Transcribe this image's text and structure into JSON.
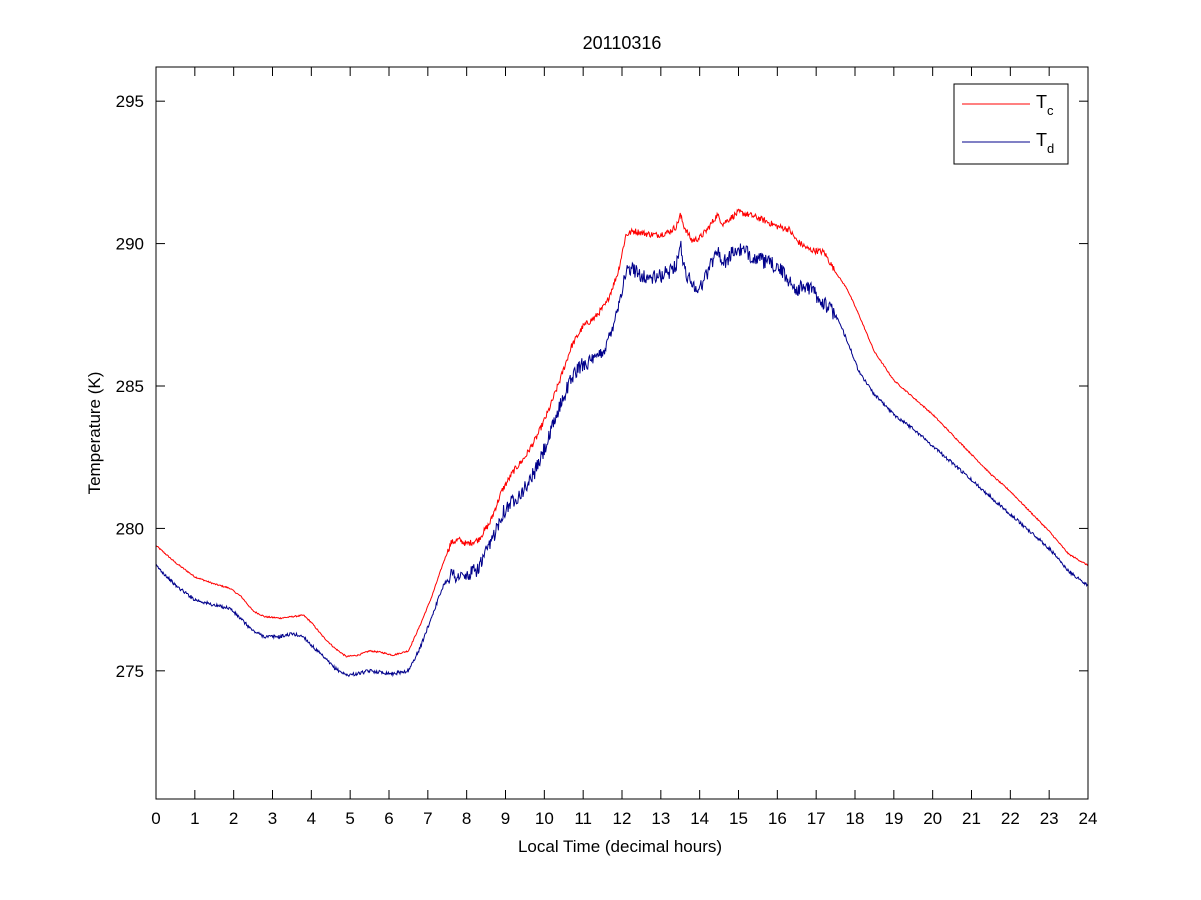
{
  "chart_data": {
    "type": "line",
    "title": "20110316",
    "xlabel": "Local Time (decimal hours)",
    "ylabel": "Temperature (K)",
    "xlim": [
      0,
      24
    ],
    "ylim": [
      270.5,
      296.2
    ],
    "xticks": [
      "0",
      "1",
      "2",
      "3",
      "4",
      "5",
      "6",
      "7",
      "8",
      "9",
      "10",
      "11",
      "12",
      "13",
      "14",
      "15",
      "16",
      "17",
      "18",
      "19",
      "20",
      "21",
      "22",
      "23",
      "24"
    ],
    "yticks": [
      "275",
      "280",
      "285",
      "290",
      "295"
    ],
    "grid": false,
    "legend_position": "top-right",
    "series": [
      {
        "name": "T",
        "subscript": "c",
        "color": "#ff0000",
        "x": [
          0,
          0.5,
          1,
          1.5,
          1.9,
          2.2,
          2.5,
          2.8,
          3.2,
          3.5,
          3.8,
          4.0,
          4.3,
          4.6,
          4.9,
          5.2,
          5.5,
          5.8,
          6.1,
          6.5,
          6.8,
          7.1,
          7.4,
          7.6,
          7.8,
          8.0,
          8.3,
          8.6,
          8.9,
          9.2,
          9.5,
          9.8,
          10.1,
          10.4,
          10.7,
          11.0,
          11.3,
          11.6,
          11.9,
          12.1,
          12.3,
          12.6,
          12.9,
          13.2,
          13.4,
          13.5,
          13.6,
          13.8,
          14.0,
          14.2,
          14.45,
          14.6,
          14.8,
          15.0,
          15.3,
          15.6,
          16.0,
          16.3,
          16.5,
          16.8,
          17.2,
          17.5,
          17.8,
          18.1,
          18.5,
          19.0,
          19.5,
          20.0,
          20.5,
          21.0,
          21.5,
          22.0,
          22.5,
          23.0,
          23.5,
          24.0
        ],
        "values": [
          279.4,
          278.8,
          278.3,
          278.05,
          277.9,
          277.6,
          277.1,
          276.9,
          276.85,
          276.9,
          276.95,
          276.7,
          276.2,
          275.8,
          275.5,
          275.55,
          275.7,
          275.65,
          275.55,
          275.7,
          276.6,
          277.6,
          278.8,
          279.5,
          279.6,
          279.45,
          279.6,
          280.2,
          281.3,
          282.0,
          282.5,
          283.2,
          284.1,
          285.2,
          286.4,
          287.1,
          287.4,
          287.9,
          289.0,
          290.3,
          290.45,
          290.35,
          290.3,
          290.4,
          290.6,
          291.0,
          290.6,
          290.1,
          290.2,
          290.5,
          291.0,
          290.7,
          290.9,
          291.1,
          291.0,
          290.85,
          290.6,
          290.5,
          290.1,
          289.8,
          289.7,
          289.0,
          288.4,
          287.5,
          286.2,
          285.2,
          284.6,
          284.0,
          283.3,
          282.6,
          281.9,
          281.3,
          280.6,
          279.9,
          279.1,
          278.7
        ]
      },
      {
        "name": "T",
        "subscript": "d",
        "color": "#00008b",
        "x": [
          0,
          0.5,
          1,
          1.5,
          1.9,
          2.2,
          2.5,
          2.8,
          3.2,
          3.5,
          3.8,
          4.0,
          4.3,
          4.6,
          4.9,
          5.2,
          5.5,
          5.8,
          6.1,
          6.5,
          6.8,
          7.1,
          7.4,
          7.6,
          7.8,
          8.0,
          8.3,
          8.6,
          8.9,
          9.2,
          9.5,
          9.8,
          10.1,
          10.4,
          10.7,
          11.0,
          11.3,
          11.6,
          11.9,
          12.1,
          12.3,
          12.6,
          12.9,
          13.2,
          13.4,
          13.5,
          13.6,
          13.8,
          14.0,
          14.2,
          14.45,
          14.6,
          14.8,
          15.0,
          15.3,
          15.6,
          16.0,
          16.3,
          16.5,
          16.8,
          17.2,
          17.5,
          17.8,
          18.1,
          18.5,
          19.0,
          19.5,
          20.0,
          20.5,
          21.0,
          21.5,
          22.0,
          22.5,
          23.0,
          23.5,
          24.0
        ],
        "values": [
          278.7,
          278.0,
          277.5,
          277.3,
          277.2,
          276.8,
          276.4,
          276.2,
          276.2,
          276.3,
          276.2,
          275.9,
          275.5,
          275.1,
          274.85,
          274.9,
          275.0,
          274.95,
          274.9,
          275.0,
          275.8,
          276.9,
          278.0,
          278.4,
          278.3,
          278.3,
          278.6,
          279.4,
          280.5,
          281.0,
          281.4,
          282.1,
          283.1,
          284.3,
          285.3,
          285.8,
          285.9,
          286.4,
          287.8,
          289.0,
          289.1,
          288.8,
          288.8,
          289.0,
          289.3,
          290.0,
          289.1,
          288.6,
          288.4,
          289.0,
          289.8,
          289.3,
          289.6,
          289.8,
          289.6,
          289.4,
          289.2,
          288.7,
          288.4,
          288.5,
          287.9,
          287.5,
          286.6,
          285.5,
          284.7,
          284.0,
          283.5,
          282.9,
          282.3,
          281.7,
          281.1,
          280.5,
          279.9,
          279.3,
          278.5,
          278.0
        ]
      }
    ]
  }
}
